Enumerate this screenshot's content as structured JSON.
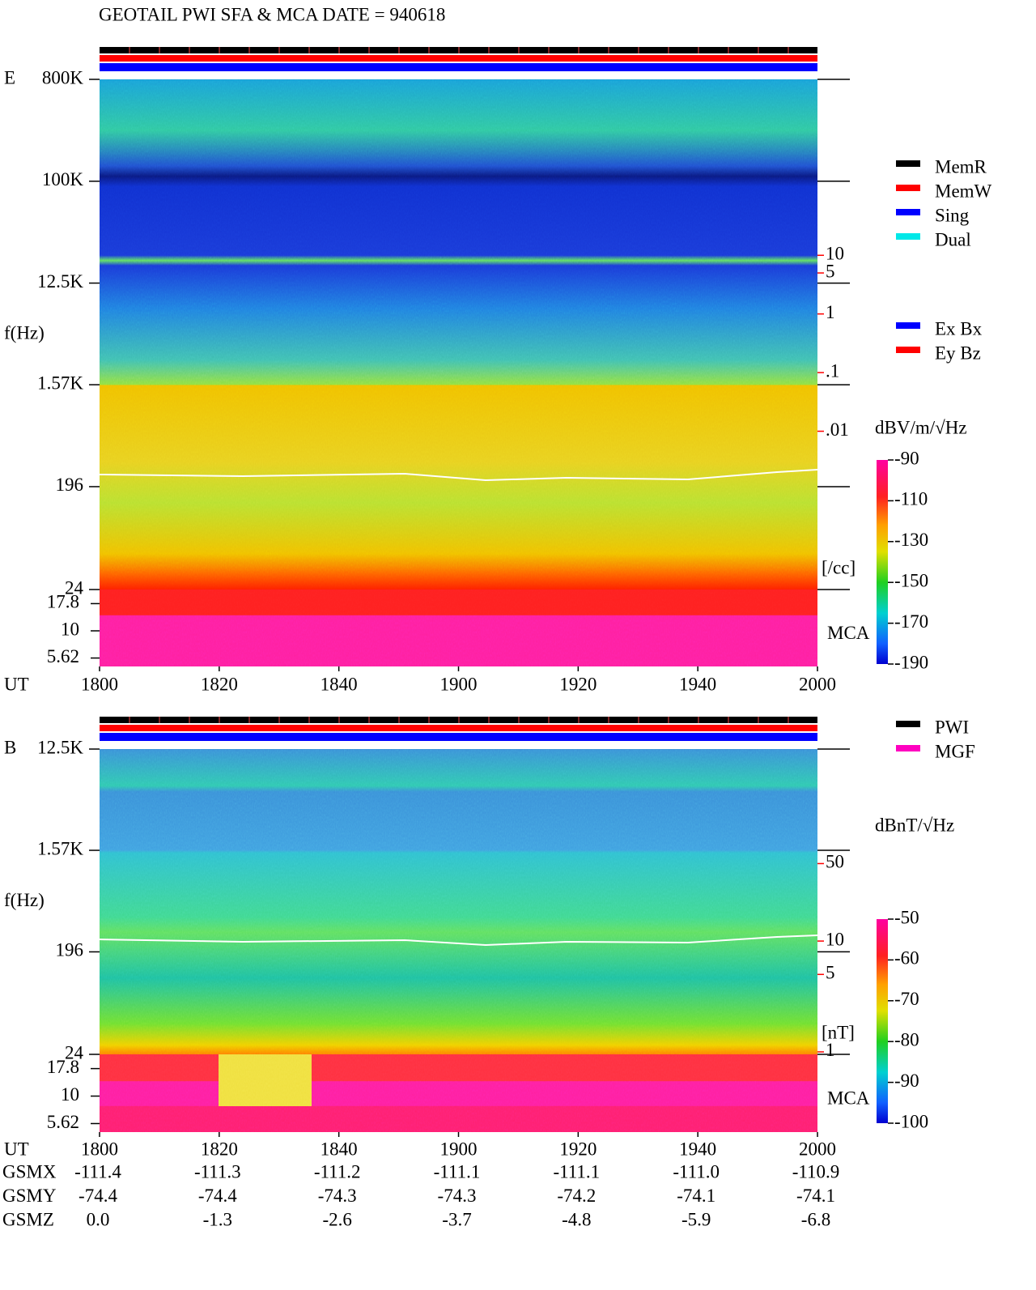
{
  "title": "GEOTAIL  PWI SFA & MCA   DATE = 940618",
  "chart_data": [
    {
      "type": "spectrogram",
      "panel": "E",
      "ylabel": "f(Hz)",
      "xlabel": "UT",
      "xticks": [
        "1800",
        "1820",
        "1840",
        "1900",
        "1920",
        "1940",
        "2000"
      ],
      "log": true,
      "ylim": [
        24,
        800000
      ],
      "yticks": [
        {
          "value": 800000,
          "label": "800K"
        },
        {
          "value": 100000,
          "label": "100K"
        },
        {
          "value": 12500,
          "label": "12.5K"
        },
        {
          "value": 1570,
          "label": "1.57K"
        },
        196,
        24
      ],
      "mca_label": "MCA",
      "mca_ylim": [
        4.7,
        24
      ],
      "mca_yticks": [
        17.8,
        10,
        5.62
      ],
      "legend": [
        {
          "name": "MemR",
          "color": "#000000"
        },
        {
          "name": "MemW",
          "color": "#ff0000"
        },
        {
          "name": "Sing",
          "color": "#0000ff"
        },
        {
          "name": "Dual",
          "color": "#00e8e8"
        }
      ],
      "legend2": [
        {
          "name": "Ex Bx",
          "color": "#0000ff"
        },
        {
          "name": "Ey Bz",
          "color": "#ff0000"
        }
      ],
      "colorbar": {
        "label": "dBV/m/√Hz",
        "clim": [
          -190,
          -90
        ],
        "ticks": [
          -90,
          -110,
          -130,
          -150,
          -170,
          -190
        ]
      },
      "right_axis": {
        "label": "[/cc]",
        "color": "#ff0000",
        "ylim": [
          2e-05,
          10000
        ],
        "ticks": [
          10,
          5,
          1,
          {
            "value": 0.1,
            "label": ".1"
          },
          {
            "value": 0.01,
            "label": ".01"
          }
        ]
      }
    },
    {
      "type": "spectrogram",
      "panel": "B",
      "ylabel": "f(Hz)",
      "xlabel": "UT",
      "xticks": [
        "1800",
        "1820",
        "1840",
        "1900",
        "1920",
        "1940",
        "2000"
      ],
      "log": true,
      "ylim": [
        24,
        12500
      ],
      "yticks": [
        {
          "value": 12500,
          "label": "12.5K"
        },
        {
          "value": 1570,
          "label": "1.57K"
        },
        196,
        24
      ],
      "mca_label": "MCA",
      "mca_ylim": [
        4.7,
        24
      ],
      "mca_yticks": [
        17.8,
        10,
        5.62
      ],
      "legend": [
        {
          "name": "PWI",
          "color": "#000000"
        },
        {
          "name": "MGF",
          "color": "#ff00c0"
        }
      ],
      "colorbar": {
        "label": "dBnT/√Hz",
        "clim": [
          -100,
          -50
        ],
        "ticks": [
          -50,
          -60,
          -70,
          -80,
          -90,
          -100
        ]
      },
      "right_axis": {
        "label": "[nT]",
        "color": "#ff0000",
        "ylim": [
          0.95,
          540
        ],
        "ticks": [
          50,
          10,
          5,
          1
        ]
      }
    }
  ],
  "orbit": {
    "rows": [
      {
        "name": "GSMX",
        "values": [
          "-111.4",
          "-111.3",
          "-111.2",
          "-111.1",
          "-111.1",
          "-111.0",
          "-110.9"
        ]
      },
      {
        "name": "GSMY",
        "values": [
          "-74.4",
          "-74.4",
          "-74.3",
          "-74.3",
          "-74.2",
          "-74.1",
          "-74.1"
        ]
      },
      {
        "name": "GSMZ",
        "values": [
          "0.0",
          "-1.3",
          "-2.6",
          "-3.7",
          "-4.8",
          "-5.9",
          "-6.8"
        ]
      }
    ]
  }
}
